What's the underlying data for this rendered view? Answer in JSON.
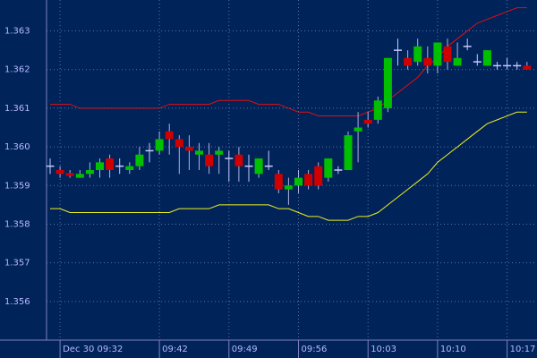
{
  "chart_data": {
    "type": "candlestick",
    "categories": [
      null,
      "Dec 30 09:32",
      null,
      null,
      null,
      null,
      null,
      null,
      null,
      null,
      null,
      "09:42",
      null,
      null,
      null,
      null,
      null,
      null,
      "09:49",
      null,
      null,
      null,
      null,
      null,
      null,
      "09:56",
      null,
      null,
      null,
      null,
      null,
      null,
      "10:03",
      null,
      null,
      null,
      null,
      null,
      null,
      "10:10",
      null,
      null,
      null,
      null,
      null,
      null,
      "10:17",
      null,
      null
    ],
    "open": [
      1.3595,
      1.3594,
      1.35932,
      1.3592,
      1.3593,
      1.3594,
      1.3597,
      1.3595,
      1.3594,
      1.3595,
      1.3599,
      1.3599,
      1.3604,
      1.3602,
      1.36,
      1.3598,
      1.3598,
      1.3598,
      1.3597,
      1.3598,
      1.3595,
      1.3593,
      1.3595,
      1.3593,
      1.3589,
      1.359,
      1.3593,
      1.3595,
      1.3592,
      1.3594,
      1.3594,
      1.3604,
      1.3607,
      1.3607,
      1.361,
      1.3625,
      1.3623,
      1.3622,
      1.3623,
      1.3621,
      1.3626,
      1.3621,
      1.3626,
      1.3622,
      1.3621,
      1.3621,
      1.3621,
      1.3621,
      1.3621
    ],
    "high": [
      1.3597,
      1.3595,
      1.3594,
      1.3594,
      1.3596,
      1.3597,
      1.3598,
      1.3597,
      1.3596,
      1.36,
      1.3601,
      1.3604,
      1.3606,
      1.3603,
      1.3603,
      1.3601,
      1.3601,
      1.36,
      1.3599,
      1.36,
      1.3598,
      1.3597,
      1.3599,
      1.3594,
      1.3592,
      1.3594,
      1.3594,
      1.3596,
      1.3597,
      1.3595,
      1.3604,
      1.3609,
      1.3609,
      1.3613,
      1.3623,
      1.3628,
      1.3625,
      1.3628,
      1.3626,
      1.3627,
      1.3628,
      1.3627,
      1.3628,
      1.3624,
      1.3625,
      1.3622,
      1.3623,
      1.3622,
      1.3622
    ],
    "low": [
      1.3593,
      1.3592,
      1.3592,
      1.3592,
      1.3592,
      1.3592,
      1.3592,
      1.3593,
      1.3593,
      1.3594,
      1.3596,
      1.3598,
      1.3598,
      1.3593,
      1.3594,
      1.3594,
      1.3593,
      1.3593,
      1.3591,
      1.3591,
      1.3591,
      1.3592,
      1.3594,
      1.3588,
      1.3585,
      1.3588,
      1.3589,
      1.3589,
      1.3591,
      1.3593,
      1.3594,
      1.3596,
      1.3605,
      1.3606,
      1.3609,
      1.3621,
      1.362,
      1.3621,
      1.3619,
      1.3619,
      1.362,
      1.3621,
      1.3625,
      1.3621,
      1.3621,
      1.362,
      1.362,
      1.362,
      1.362
    ],
    "close": [
      1.3595,
      1.3593,
      1.35925,
      1.3593,
      1.3594,
      1.3596,
      1.3594,
      1.3595,
      1.3595,
      1.3598,
      1.3599,
      1.3602,
      1.3602,
      1.36,
      1.3599,
      1.3599,
      1.3595,
      1.3599,
      1.3597,
      1.3595,
      1.3595,
      1.3597,
      1.3595,
      1.3589,
      1.359,
      1.3592,
      1.359,
      1.359,
      1.3597,
      1.3594,
      1.3603,
      1.3605,
      1.3606,
      1.3612,
      1.3623,
      1.3625,
      1.3621,
      1.3626,
      1.3621,
      1.3627,
      1.3622,
      1.3623,
      1.3626,
      1.3622,
      1.3625,
      1.3621,
      1.3621,
      1.3621,
      1.362
    ],
    "up_color": "#00c000",
    "down_color": "#d00000",
    "flat_color": "#c8c8ff",
    "lines": [
      {
        "color": "#e01010",
        "values": [
          1.3611,
          1.3611,
          1.3611,
          1.361,
          1.361,
          1.361,
          1.361,
          1.361,
          1.361,
          1.361,
          1.361,
          1.361,
          1.3611,
          1.3611,
          1.3611,
          1.3611,
          1.3611,
          1.3612,
          1.3612,
          1.3612,
          1.3612,
          1.3611,
          1.3611,
          1.3611,
          1.361,
          1.3609,
          1.3609,
          1.3608,
          1.3608,
          1.3608,
          1.3608,
          1.3608,
          1.3609,
          1.361,
          1.3612,
          1.3614,
          1.3616,
          1.3618,
          1.3621,
          1.3623,
          1.3626,
          1.3628,
          1.363,
          1.3632,
          1.3633,
          1.3634,
          1.3635,
          1.3636,
          1.3636
        ]
      },
      {
        "color": "#f0f020",
        "values": [
          1.3584,
          1.3584,
          1.3583,
          1.3583,
          1.3583,
          1.3583,
          1.3583,
          1.3583,
          1.3583,
          1.3583,
          1.3583,
          1.3583,
          1.3583,
          1.3584,
          1.3584,
          1.3584,
          1.3584,
          1.3585,
          1.3585,
          1.3585,
          1.3585,
          1.3585,
          1.3585,
          1.3584,
          1.3584,
          1.3583,
          1.3582,
          1.3582,
          1.3581,
          1.3581,
          1.3581,
          1.3582,
          1.3582,
          1.3583,
          1.3585,
          1.3587,
          1.3589,
          1.3591,
          1.3593,
          1.3596,
          1.3598,
          1.36,
          1.3602,
          1.3604,
          1.3606,
          1.3607,
          1.3608,
          1.3609,
          1.3609
        ]
      }
    ],
    "ylim": [
      1.355,
      1.3638
    ],
    "yticks": [
      {
        "value": 1.356,
        "label": "1.356"
      },
      {
        "value": 1.357,
        "label": "1.357"
      },
      {
        "value": 1.358,
        "label": "1.358"
      },
      {
        "value": 1.359,
        "label": "1.359"
      },
      {
        "value": 1.36,
        "label": "1.360"
      },
      {
        "value": 1.361,
        "label": "1.361"
      },
      {
        "value": 1.362,
        "label": "1.362"
      },
      {
        "value": 1.363,
        "label": "1.363"
      }
    ],
    "grid": true
  }
}
